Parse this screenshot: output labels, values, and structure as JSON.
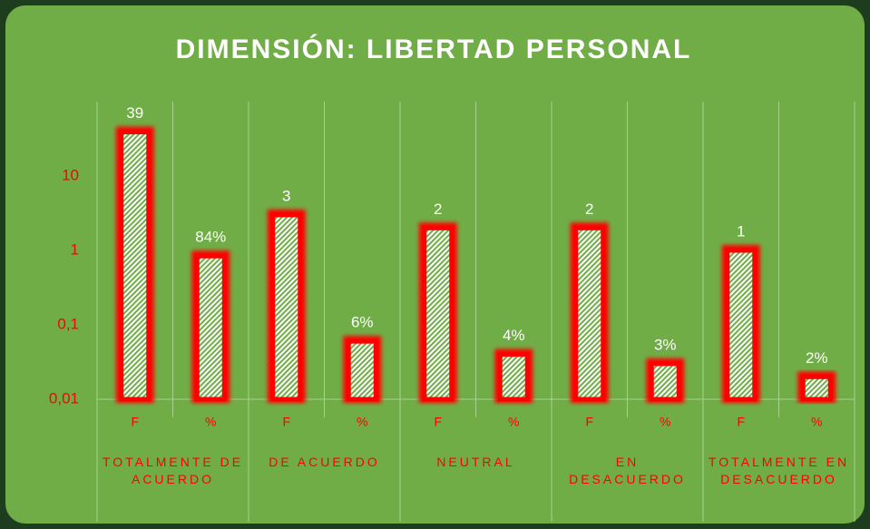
{
  "chart_data": {
    "type": "bar",
    "title": "DIMENSIÓN: LIBERTAD PERSONAL",
    "categories": [
      "F",
      "%",
      "F",
      "%",
      "F",
      "%",
      "F",
      "%",
      "F",
      "%"
    ],
    "groups": [
      "TOTALMENTE DE ACUERDO",
      "DE ACUERDO",
      "NEUTRAL",
      "EN DESACUERDO",
      "TOTALMENTE EN DESACUERDO"
    ],
    "values": [
      39,
      0.84,
      3,
      0.06,
      2,
      0.04,
      2,
      0.03,
      1,
      0.02
    ],
    "value_labels": [
      "39",
      "84%",
      "3",
      "6%",
      "2",
      "4%",
      "2",
      "3%",
      "1",
      "2%"
    ],
    "color": "#ff0000",
    "log_scale": true,
    "ylim": [
      0.01,
      100
    ],
    "yticks": [
      {
        "value": 0.01,
        "label": "0,01"
      },
      {
        "value": 0.1,
        "label": "0,1"
      },
      1,
      10
    ],
    "grid": true
  }
}
